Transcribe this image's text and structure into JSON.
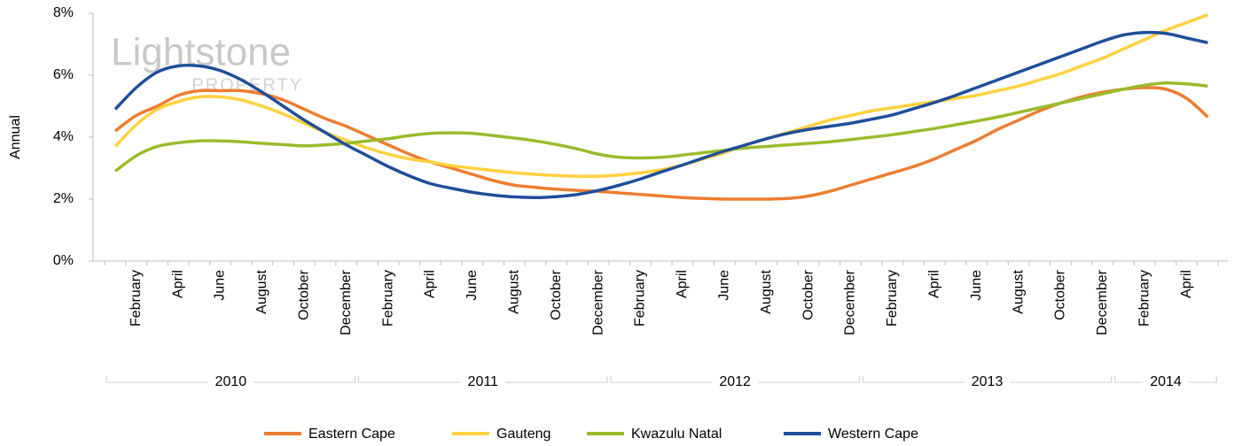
{
  "chart_data": {
    "type": "line",
    "watermark": {
      "title": "Lightstone",
      "subtitle": "PROPERTY"
    },
    "y_label": "Annual",
    "categories": [
      null,
      "February",
      null,
      "April",
      null,
      "June",
      null,
      "August",
      null,
      "October",
      null,
      "December",
      null,
      "February",
      null,
      "April",
      null,
      "June",
      null,
      "August",
      null,
      "October",
      null,
      "December",
      null,
      "February",
      null,
      "April",
      null,
      "June",
      null,
      "August",
      null,
      "October",
      null,
      "December",
      null,
      "February",
      null,
      "April",
      null,
      "June",
      null,
      "August",
      null,
      "October",
      null,
      "December",
      null,
      "February",
      null,
      "April",
      null
    ],
    "groups": [
      "2010",
      "2011",
      "2012",
      "2013",
      "2014"
    ],
    "ylim": [
      0,
      8
    ],
    "yticks": [
      {
        "value": 0,
        "label": "0%"
      },
      {
        "value": 2,
        "label": "2%"
      },
      {
        "value": 4,
        "label": "4%"
      },
      {
        "value": 6,
        "label": "6%"
      },
      {
        "value": 8,
        "label": "8%"
      }
    ],
    "series": [
      {
        "name": "Eastern Cape",
        "color": "#ed7d31",
        "values": [
          4.2,
          4.7,
          5.0,
          5.35,
          5.5,
          5.5,
          5.5,
          5.4,
          5.2,
          4.9,
          4.6,
          4.35,
          4.05,
          3.75,
          3.45,
          3.2,
          3.0,
          2.8,
          2.6,
          2.45,
          2.38,
          2.32,
          2.28,
          2.25,
          2.2,
          2.15,
          2.1,
          2.05,
          2.02,
          2.0,
          2.0,
          2.0,
          2.02,
          2.1,
          2.25,
          2.45,
          2.65,
          2.85,
          3.05,
          3.3,
          3.6,
          3.9,
          4.25,
          4.55,
          4.85,
          5.1,
          5.3,
          5.45,
          5.55,
          5.6,
          5.55,
          5.25,
          4.65
        ]
      },
      {
        "name": "Gauteng",
        "color": "#ffd13f",
        "values": [
          3.7,
          4.4,
          4.9,
          5.15,
          5.3,
          5.3,
          5.2,
          5.0,
          4.75,
          4.45,
          4.15,
          3.9,
          3.65,
          3.45,
          3.3,
          3.2,
          3.08,
          3.0,
          2.92,
          2.85,
          2.8,
          2.76,
          2.74,
          2.74,
          2.78,
          2.85,
          2.95,
          3.1,
          3.3,
          3.5,
          3.75,
          3.95,
          4.15,
          4.35,
          4.55,
          4.7,
          4.85,
          4.95,
          5.05,
          5.15,
          5.25,
          5.35,
          5.5,
          5.65,
          5.85,
          6.05,
          6.3,
          6.55,
          6.85,
          7.15,
          7.45,
          7.7,
          7.95
        ]
      },
      {
        "name": "Kwazulu Natal",
        "color": "#9bbb2b",
        "values": [
          2.9,
          3.4,
          3.7,
          3.82,
          3.88,
          3.88,
          3.85,
          3.8,
          3.76,
          3.72,
          3.75,
          3.8,
          3.88,
          3.95,
          4.05,
          4.12,
          4.14,
          4.12,
          4.05,
          3.97,
          3.88,
          3.76,
          3.62,
          3.45,
          3.35,
          3.33,
          3.35,
          3.42,
          3.5,
          3.58,
          3.65,
          3.7,
          3.75,
          3.8,
          3.85,
          3.92,
          4.0,
          4.08,
          4.18,
          4.28,
          4.4,
          4.52,
          4.65,
          4.8,
          4.95,
          5.1,
          5.25,
          5.4,
          5.55,
          5.68,
          5.75,
          5.72,
          5.65
        ]
      },
      {
        "name": "Western Cape",
        "color": "#1f4e9a",
        "values": [
          4.9,
          5.6,
          6.1,
          6.3,
          6.3,
          6.15,
          5.85,
          5.45,
          5.0,
          4.55,
          4.15,
          3.75,
          3.4,
          3.05,
          2.75,
          2.5,
          2.35,
          2.22,
          2.13,
          2.07,
          2.05,
          2.08,
          2.15,
          2.28,
          2.45,
          2.65,
          2.88,
          3.1,
          3.33,
          3.55,
          3.75,
          3.95,
          4.12,
          4.25,
          4.35,
          4.45,
          4.58,
          4.72,
          4.92,
          5.12,
          5.35,
          5.6,
          5.85,
          6.1,
          6.35,
          6.6,
          6.85,
          7.1,
          7.3,
          7.38,
          7.35,
          7.2,
          7.05
        ]
      }
    ]
  }
}
